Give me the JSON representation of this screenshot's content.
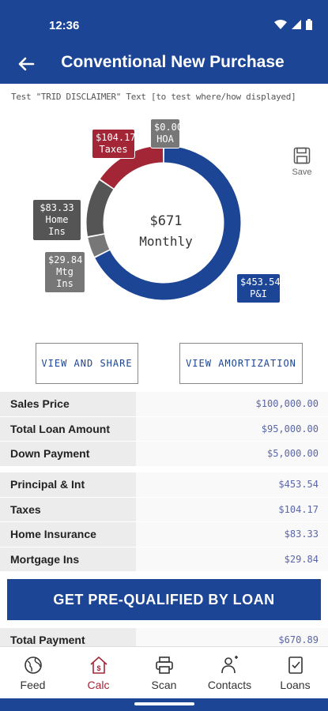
{
  "status": {
    "time": "12:36"
  },
  "header": {
    "title": "Conventional New Purchase"
  },
  "disclaimer": "Test \"TRID DISCLAIMER\" Text [to test where/how displayed]",
  "chart_data": {
    "type": "pie",
    "variant": "donut",
    "center_value": "$671",
    "center_label": "Monthly",
    "slices": [
      {
        "label": "P&I",
        "value": 453.54,
        "display": "$453.54",
        "color": "#1c4595"
      },
      {
        "label": "Mtg Ins",
        "value": 29.84,
        "display": "$29.84",
        "color": "#777777"
      },
      {
        "label": "Home Ins",
        "value": 83.33,
        "display": "$83.33",
        "color": "#555555"
      },
      {
        "label": "Taxes",
        "value": 104.17,
        "display": "$104.17",
        "color": "#a32637"
      },
      {
        "label": "HOA",
        "value": 0.0,
        "display": "$0.00",
        "color": "#777777"
      }
    ]
  },
  "save": {
    "label": "Save",
    "icon": "floppy-disk-icon"
  },
  "actions": {
    "view_share": "VIEW AND SHARE",
    "view_amortization": "VIEW AMORTIZATION"
  },
  "loan_rows": [
    {
      "label": "Sales Price",
      "value": "$100,000.00"
    },
    {
      "label": "Total Loan Amount",
      "value": "$95,000.00"
    },
    {
      "label": "Down Payment",
      "value": "$5,000.00"
    }
  ],
  "payment_rows": [
    {
      "label": "Principal & Int",
      "value": "$453.54"
    },
    {
      "label": "Taxes",
      "value": "$104.17"
    },
    {
      "label": "Home Insurance",
      "value": "$83.33"
    },
    {
      "label": "Mortgage Ins",
      "value": "$29.84"
    }
  ],
  "cta": {
    "label": "GET PRE-QUALIFIED BY LOAN"
  },
  "total": {
    "label": "Total Payment",
    "value": "$670.89"
  },
  "nav": [
    {
      "label": "Feed",
      "icon": "globe-icon",
      "active": false
    },
    {
      "label": "Calc",
      "icon": "calculator-home-icon",
      "active": true
    },
    {
      "label": "Scan",
      "icon": "printer-icon",
      "active": false
    },
    {
      "label": "Contacts",
      "icon": "contacts-icon",
      "active": false
    },
    {
      "label": "Loans",
      "icon": "document-check-icon",
      "active": false
    }
  ],
  "colors": {
    "primary": "#1c4595",
    "accent": "#a32637"
  }
}
